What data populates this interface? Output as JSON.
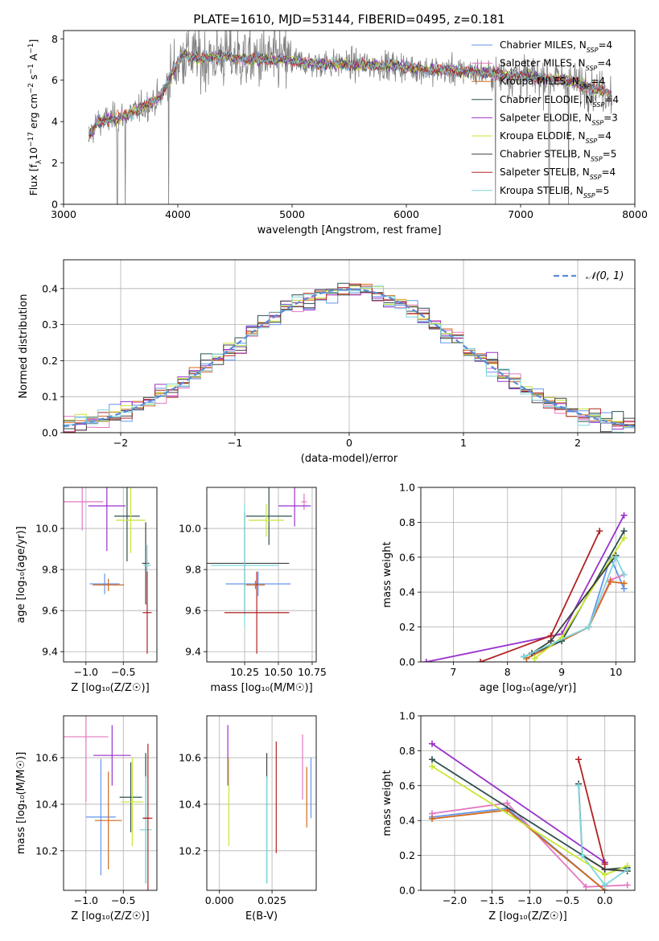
{
  "title": "PLATE=1610, MJD=53144, FIBERID=0495, z=0.181",
  "colors": {
    "Chabrier MILES": "#6495ed",
    "Salpeter MILES": "#e377c2",
    "Kroupa MILES": "#d2691e",
    "Chabrier ELODIE": "#2f4f4f",
    "Salpeter ELODIE": "#9932cc",
    "Kroupa ELODIE": "#c8e632",
    "Chabrier STELIB": "#404040",
    "Salpeter STELIB": "#b22222",
    "Kroupa STELIB": "#7fd6d9",
    "data": "#808080",
    "grid": "#b0b0b0",
    "gaussian": "#5b8bd8"
  },
  "chart_data": [
    {
      "id": "spectrum",
      "type": "line",
      "title": "PLATE=1610, MJD=53144, FIBERID=0495, z=0.181",
      "xlabel": "wavelength [Angstrom, rest frame]",
      "ylabel_parts": [
        "Flux [f",
        "λ",
        "10",
        "−17",
        " erg cm",
        "−2",
        " s",
        "−1",
        " A",
        "−1",
        "]"
      ],
      "xlim": [
        3000,
        8000
      ],
      "ylim": [
        0,
        8.4
      ],
      "xticks": [
        3000,
        4000,
        5000,
        6000,
        7000,
        8000
      ],
      "yticks": [
        0,
        2,
        4,
        6,
        8
      ],
      "legend": [
        {
          "name": "Chabrier MILES",
          "nssp": "4"
        },
        {
          "name": "Salpeter MILES",
          "nssp": "4"
        },
        {
          "name": "Kroupa MILES",
          "nssp": "4"
        },
        {
          "name": "Chabrier ELODIE",
          "nssp": "4"
        },
        {
          "name": "Salpeter ELODIE",
          "nssp": "3"
        },
        {
          "name": "Kroupa ELODIE",
          "nssp": "4"
        },
        {
          "name": "Chabrier STELIB",
          "nssp": "5"
        },
        {
          "name": "Salpeter STELIB",
          "nssp": "4"
        },
        {
          "name": "Kroupa STELIB",
          "nssp": "5"
        }
      ],
      "legend_prefix": "N",
      "legend_sub": "SSP",
      "legend_position": "top-right",
      "continuum": [
        [
          3220,
          3.3
        ],
        [
          3300,
          4.0
        ],
        [
          3500,
          4.2
        ],
        [
          3700,
          4.7
        ],
        [
          3850,
          5.2
        ],
        [
          3950,
          6.3
        ],
        [
          4050,
          7.3
        ],
        [
          4200,
          7.0
        ],
        [
          4400,
          7.2
        ],
        [
          4600,
          7.0
        ],
        [
          4900,
          7.0
        ],
        [
          5200,
          6.8
        ],
        [
          5600,
          6.75
        ],
        [
          5900,
          6.7
        ],
        [
          6200,
          6.5
        ],
        [
          6600,
          6.4
        ],
        [
          7000,
          6.2
        ],
        [
          7400,
          6.0
        ],
        [
          7700,
          5.5
        ],
        [
          7800,
          5.3
        ]
      ],
      "dropouts": [
        3470,
        3540,
        3920,
        6780,
        7250,
        7420
      ]
    },
    {
      "id": "residuals",
      "type": "line",
      "xlabel": "(data-model)/error",
      "ylabel": "Normed distribution",
      "xlim": [
        -2.5,
        2.5
      ],
      "ylim": [
        0,
        0.48
      ],
      "xticks": [
        -2,
        -1,
        0,
        1,
        2
      ],
      "yticks": [
        0.0,
        0.1,
        0.2,
        0.3,
        0.4
      ],
      "legend": [
        "𝒩(0, 1)"
      ],
      "legend_position": "top-right",
      "bin_width": 0.1,
      "gaussian_sigma": 1.0
    },
    {
      "id": "age-vs-Z",
      "type": "scatter",
      "xlabel": "Z [log₁₀(Z/Z☉)]",
      "ylabel": "age  [log₁₀(age/yr)]",
      "xlim": [
        -1.3,
        -0.05
      ],
      "ylim": [
        9.35,
        10.2
      ],
      "xticks": [
        -1.0,
        -0.5
      ],
      "yticks": [
        9.4,
        9.6,
        9.8,
        10.0
      ],
      "points": [
        {
          "series": "Salpeter MILES",
          "x": -1.05,
          "xerr": 0.28,
          "y": 10.13,
          "yerr": 0.14
        },
        {
          "series": "Salpeter ELODIE",
          "x": -0.72,
          "xerr": 0.25,
          "y": 10.11,
          "yerr": 0.22
        },
        {
          "series": "Chabrier ELODIE",
          "x": -0.45,
          "xerr": 0.17,
          "y": 10.06,
          "yerr": 0.22
        },
        {
          "series": "Kroupa ELODIE",
          "x": -0.4,
          "xerr": 0.2,
          "y": 10.04,
          "yerr": 0.16
        },
        {
          "series": "Chabrier MILES",
          "x": -0.75,
          "xerr": 0.2,
          "y": 9.73,
          "yerr": 0.05
        },
        {
          "series": "Kroupa MILES",
          "x": -0.7,
          "xerr": 0.21,
          "y": 9.725,
          "yerr": 0.03
        },
        {
          "series": "Chabrier STELIB",
          "x": -0.2,
          "xerr": 0.05,
          "y": 9.83,
          "yerr": 0.2
        },
        {
          "series": "Kroupa STELIB",
          "x": -0.18,
          "xerr": 0.05,
          "y": 9.82,
          "yerr": 0.1
        },
        {
          "series": "Salpeter STELIB",
          "x": -0.18,
          "xerr": 0.06,
          "y": 9.59,
          "yerr": 0.2
        }
      ]
    },
    {
      "id": "age-vs-mass",
      "type": "scatter",
      "xlabel": "mass [log₁₀(M/M☉)]",
      "ylabel": "",
      "xlim": [
        9.97,
        10.78
      ],
      "ylim": [
        9.35,
        10.2
      ],
      "xticks": [
        10.25,
        10.5,
        10.75
      ],
      "yticks": [
        9.4,
        9.6,
        9.8,
        10.0
      ],
      "points": [
        {
          "series": "Salpeter MILES",
          "x": 10.69,
          "xerr": 0.02,
          "y": 10.13,
          "yerr": 0.04
        },
        {
          "series": "Salpeter ELODIE",
          "x": 10.62,
          "xerr": 0.12,
          "y": 10.11,
          "yerr": 0.1
        },
        {
          "series": "Chabrier ELODIE",
          "x": 10.43,
          "xerr": 0.17,
          "y": 10.06,
          "yerr": 0.14
        },
        {
          "series": "Kroupa ELODIE",
          "x": 10.41,
          "xerr": 0.13,
          "y": 10.04,
          "yerr": 0.08
        },
        {
          "series": "Chabrier MILES",
          "x": 10.35,
          "xerr": 0.24,
          "y": 9.73,
          "yerr": 0.06
        },
        {
          "series": "Kroupa MILES",
          "x": 10.33,
          "xerr": 0.07,
          "y": 9.725,
          "yerr": 0.02
        },
        {
          "series": "Chabrier STELIB",
          "x": 10.25,
          "xerr": 0.33,
          "y": 9.83,
          "yerr": 0.25
        },
        {
          "series": "Kroupa STELIB",
          "x": 10.25,
          "xerr": 0.25,
          "y": 9.82,
          "yerr": 0.3
        },
        {
          "series": "Salpeter STELIB",
          "x": 10.34,
          "xerr": 0.24,
          "y": 9.59,
          "yerr": 0.2
        }
      ]
    },
    {
      "id": "weight-vs-age",
      "type": "line",
      "xlabel": "age  [log₁₀(age/yr)]",
      "ylabel": "mass weight",
      "xlim": [
        6.4,
        10.35
      ],
      "ylim": [
        0,
        1.0
      ],
      "xticks": [
        7,
        8,
        9,
        10
      ],
      "yticks": [
        0.0,
        0.2,
        0.4,
        0.6,
        0.8,
        1.0
      ],
      "series": [
        {
          "name": "Chabrier MILES",
          "points": [
            [
              8.35,
              0.02
            ],
            [
              9.5,
              0.2
            ],
            [
              9.9,
              0.6
            ],
            [
              10.15,
              0.42
            ]
          ]
        },
        {
          "name": "Salpeter MILES",
          "points": [
            [
              8.35,
              0.02
            ],
            [
              9.5,
              0.2
            ],
            [
              9.9,
              0.47
            ],
            [
              10.15,
              0.5
            ]
          ]
        },
        {
          "name": "Kroupa MILES",
          "points": [
            [
              8.35,
              0.02
            ],
            [
              9.5,
              0.2
            ],
            [
              9.9,
              0.46
            ],
            [
              10.15,
              0.45
            ]
          ]
        },
        {
          "name": "Chabrier ELODIE",
          "points": [
            [
              8.3,
              0.03
            ],
            [
              9.0,
              0.12
            ],
            [
              10.15,
              0.75
            ]
          ]
        },
        {
          "name": "Salpeter ELODIE",
          "points": [
            [
              6.5,
              0.0
            ],
            [
              9.0,
              0.16
            ],
            [
              10.15,
              0.84
            ]
          ]
        },
        {
          "name": "Kroupa ELODIE",
          "points": [
            [
              8.5,
              0.02
            ],
            [
              9.0,
              0.14
            ],
            [
              10.15,
              0.71
            ]
          ]
        },
        {
          "name": "Chabrier STELIB",
          "points": [
            [
              8.45,
              0.05
            ],
            [
              8.8,
              0.12
            ],
            [
              10.0,
              0.61
            ]
          ]
        },
        {
          "name": "Salpeter STELIB",
          "points": [
            [
              7.5,
              0.0
            ],
            [
              8.8,
              0.15
            ],
            [
              9.7,
              0.75
            ]
          ]
        },
        {
          "name": "Kroupa STELIB",
          "points": [
            [
              8.3,
              0.03
            ],
            [
              9.5,
              0.2
            ],
            [
              10.0,
              0.6
            ],
            [
              10.15,
              0.5
            ]
          ]
        }
      ]
    },
    {
      "id": "mass-vs-Z",
      "type": "scatter",
      "xlabel": "Z [log₁₀(Z/Z☉)]",
      "ylabel": "mass [log₁₀(M/M☉)]",
      "xlim": [
        -1.3,
        -0.05
      ],
      "ylim": [
        10.03,
        10.78
      ],
      "xticks": [
        -1.0,
        -0.5
      ],
      "yticks": [
        10.2,
        10.4,
        10.6
      ],
      "points": [
        {
          "series": "Salpeter MILES",
          "x": -1.0,
          "xerr": 0.3,
          "y": 10.69,
          "yerr": 0.28
        },
        {
          "series": "Salpeter ELODIE",
          "x": -0.65,
          "xerr": 0.25,
          "y": 10.61,
          "yerr": 0.13
        },
        {
          "series": "Chabrier MILES",
          "x": -0.8,
          "xerr": 0.2,
          "y": 10.345,
          "yerr": 0.25
        },
        {
          "series": "Kroupa MILES",
          "x": -0.7,
          "xerr": 0.18,
          "y": 10.33,
          "yerr": 0.21
        },
        {
          "series": "Chabrier ELODIE",
          "x": -0.4,
          "xerr": 0.15,
          "y": 10.43,
          "yerr": 0.15
        },
        {
          "series": "Kroupa ELODIE",
          "x": -0.38,
          "xerr": 0.15,
          "y": 10.41,
          "yerr": 0.19
        },
        {
          "series": "Chabrier STELIB",
          "x": -0.2,
          "xerr": 0.04,
          "y": 10.34,
          "yerr": 0.28
        },
        {
          "series": "Kroupa STELIB",
          "x": -0.2,
          "xerr": 0.08,
          "y": 10.29,
          "yerr": 0.23
        },
        {
          "series": "Salpeter STELIB",
          "x": -0.17,
          "xerr": 0.06,
          "y": 10.34,
          "yerr": 0.32
        }
      ]
    },
    {
      "id": "mass-vs-EBV",
      "type": "scatter",
      "xlabel": "E(B-V)",
      "ylabel": "",
      "xlim": [
        -0.006,
        0.046
      ],
      "ylim": [
        10.03,
        10.78
      ],
      "xticks": [
        0.0,
        0.025
      ],
      "yticks": [
        10.2,
        10.4,
        10.6
      ],
      "points": [
        {
          "series": "Salpeter ELODIE",
          "x": 0.004,
          "y": 10.61,
          "yerr": 0.13
        },
        {
          "series": "Kroupa ELODIE",
          "x": 0.0045,
          "y": 10.41,
          "yerr": 0.19
        },
        {
          "series": "Chabrier STELIB",
          "x": 0.0225,
          "y": 10.34,
          "yerr": 0.28
        },
        {
          "series": "Kroupa STELIB",
          "x": 0.0225,
          "y": 10.29,
          "yerr": 0.23
        },
        {
          "series": "Salpeter STELIB",
          "x": 0.027,
          "y": 10.43,
          "yerr": 0.24
        },
        {
          "series": "Salpeter MILES",
          "x": 0.0395,
          "y": 10.56,
          "yerr": 0.14
        },
        {
          "series": "Kroupa MILES",
          "x": 0.0415,
          "y": 10.43,
          "yerr": 0.13
        },
        {
          "series": "Chabrier MILES",
          "x": 0.0435,
          "y": 10.47,
          "yerr": 0.13
        }
      ]
    },
    {
      "id": "weight-vs-Z",
      "type": "line",
      "xlabel": "Z [log₁₀(Z/Z☉)]",
      "ylabel": "mass weight",
      "xlim": [
        -2.45,
        0.4
      ],
      "ylim": [
        0,
        1.0
      ],
      "xticks": [
        -2.0,
        -1.5,
        -1.0,
        -0.5,
        0.0
      ],
      "yticks": [
        0.0,
        0.2,
        0.4,
        0.6,
        0.8,
        1.0
      ],
      "series": [
        {
          "name": "Chabrier MILES",
          "points": [
            [
              -2.3,
              0.42
            ],
            [
              -1.3,
              0.47
            ],
            [
              0.0,
              0.0
            ]
          ]
        },
        {
          "name": "Salpeter MILES",
          "points": [
            [
              -2.3,
              0.44
            ],
            [
              -1.3,
              0.5
            ],
            [
              -0.25,
              0.02
            ],
            [
              0.3,
              0.03
            ]
          ]
        },
        {
          "name": "Kroupa MILES",
          "points": [
            [
              -2.3,
              0.41
            ],
            [
              -1.3,
              0.46
            ],
            [
              0.0,
              0.0
            ]
          ]
        },
        {
          "name": "Chabrier ELODIE",
          "points": [
            [
              -2.3,
              0.75
            ],
            [
              0.0,
              0.12
            ],
            [
              0.3,
              0.13
            ]
          ]
        },
        {
          "name": "Salpeter ELODIE",
          "points": [
            [
              -2.3,
              0.84
            ],
            [
              0.0,
              0.16
            ]
          ]
        },
        {
          "name": "Kroupa ELODIE",
          "points": [
            [
              -2.3,
              0.71
            ],
            [
              0.0,
              0.09
            ],
            [
              0.3,
              0.14
            ]
          ]
        },
        {
          "name": "Chabrier STELIB",
          "points": [
            [
              -0.35,
              0.61
            ],
            [
              -0.3,
              0.2
            ],
            [
              0.0,
              0.12
            ],
            [
              0.3,
              0.11
            ]
          ]
        },
        {
          "name": "Salpeter STELIB",
          "points": [
            [
              -0.35,
              0.75
            ],
            [
              0.0,
              0.15
            ]
          ]
        },
        {
          "name": "Kroupa STELIB",
          "points": [
            [
              -0.35,
              0.6
            ],
            [
              -0.3,
              0.2
            ],
            [
              0.0,
              0.03
            ],
            [
              0.3,
              0.12
            ]
          ]
        }
      ]
    }
  ]
}
